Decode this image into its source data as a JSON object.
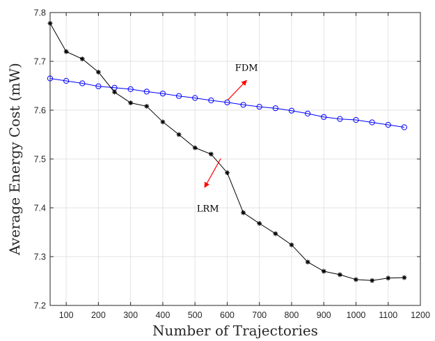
{
  "chart_data": {
    "type": "line",
    "xlabel": "Number of Trajectories",
    "ylabel": "Average Energy Cost (mW)",
    "xlim": [
      50,
      1200
    ],
    "ylim": [
      7.2,
      7.8
    ],
    "xticks": [
      100,
      200,
      300,
      400,
      500,
      600,
      700,
      800,
      900,
      1000,
      1100,
      1200
    ],
    "yticks": [
      7.2,
      7.3,
      7.4,
      7.5,
      7.6,
      7.7,
      7.8
    ],
    "grid": true,
    "x": [
      50,
      100,
      150,
      200,
      250,
      300,
      350,
      400,
      450,
      500,
      550,
      600,
      650,
      700,
      750,
      800,
      850,
      900,
      950,
      1000,
      1050,
      1100,
      1150
    ],
    "series": [
      {
        "name": "FDM",
        "color": "#0000ff",
        "marker": "circle",
        "values": [
          7.665,
          7.66,
          7.655,
          7.649,
          7.646,
          7.643,
          7.638,
          7.634,
          7.629,
          7.625,
          7.62,
          7.616,
          7.611,
          7.607,
          7.604,
          7.599,
          7.593,
          7.586,
          7.582,
          7.58,
          7.575,
          7.57,
          7.565
        ]
      },
      {
        "name": "LRM",
        "color": "#000000",
        "marker": "asterisk",
        "values": [
          7.778,
          7.72,
          7.705,
          7.678,
          7.637,
          7.615,
          7.608,
          7.576,
          7.55,
          7.523,
          7.51,
          7.472,
          7.39,
          7.368,
          7.347,
          7.324,
          7.289,
          7.27,
          7.263,
          7.253,
          7.251,
          7.256,
          7.257
        ]
      }
    ],
    "annotations": [
      {
        "text": "FDM",
        "x": 660,
        "y": 7.681,
        "arrow_from": [
          602,
          7.621
        ],
        "arrow_to": [
          660,
          7.661
        ],
        "arrow_color": "#ff0000"
      },
      {
        "text": "LRM",
        "x": 540,
        "y": 7.392,
        "arrow_from": [
          580,
          7.501
        ],
        "arrow_to": [
          530,
          7.442
        ],
        "arrow_color": "#ff0000"
      }
    ]
  }
}
